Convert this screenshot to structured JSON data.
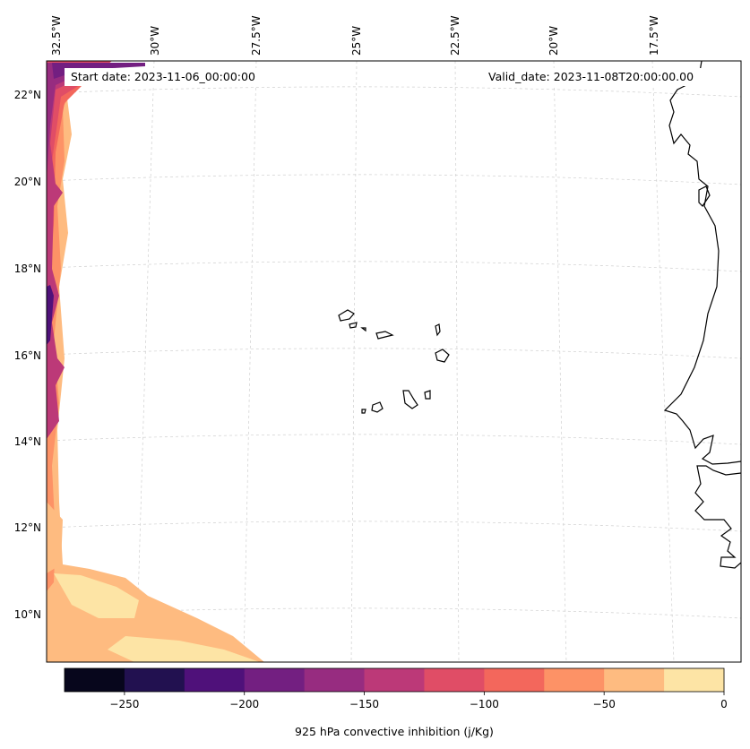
{
  "map": {
    "start_date": "Start date: 2023-11-06_00:00:00",
    "valid_date": "Valid_date: 2023-11-08T20:00:00.00",
    "lon_labels": [
      "32.5°W",
      "30°W",
      "27.5°W",
      "25°W",
      "22.5°W",
      "20°W",
      "17.5°W"
    ],
    "lat_labels": [
      "22°N",
      "20°N",
      "18°N",
      "16°N",
      "14°N",
      "12°N",
      "10°N"
    ]
  },
  "colorbar": {
    "label": "925 hPa convective inhibition (j/Kg)",
    "tick_labels": [
      "−250",
      "−200",
      "−150",
      "−100",
      "−50",
      "0"
    ],
    "colors": [
      "#07061c",
      "#221150",
      "#4f117a",
      "#731f81",
      "#972c80",
      "#bc3978",
      "#e04d66",
      "#f3675c",
      "#fd9266",
      "#febb80",
      "#fde4a5"
    ]
  },
  "chart_data": {
    "type": "heatmap",
    "variable": "925 hPa convective inhibition",
    "units": "j/Kg",
    "levels": [
      -275,
      -250,
      -225,
      -200,
      -175,
      -150,
      -125,
      -100,
      -75,
      -50,
      -25,
      0
    ],
    "colorbar_ticks": [
      -250,
      -200,
      -150,
      -100,
      -50,
      0
    ],
    "lon_ticks": [
      "32.5°W",
      "30°W",
      "27.5°W",
      "25°W",
      "22.5°W",
      "20°W",
      "17.5°W"
    ],
    "lat_ticks": [
      "22°N",
      "20°N",
      "18°N",
      "16°N",
      "14°N",
      "12°N",
      "10°N"
    ]
  }
}
